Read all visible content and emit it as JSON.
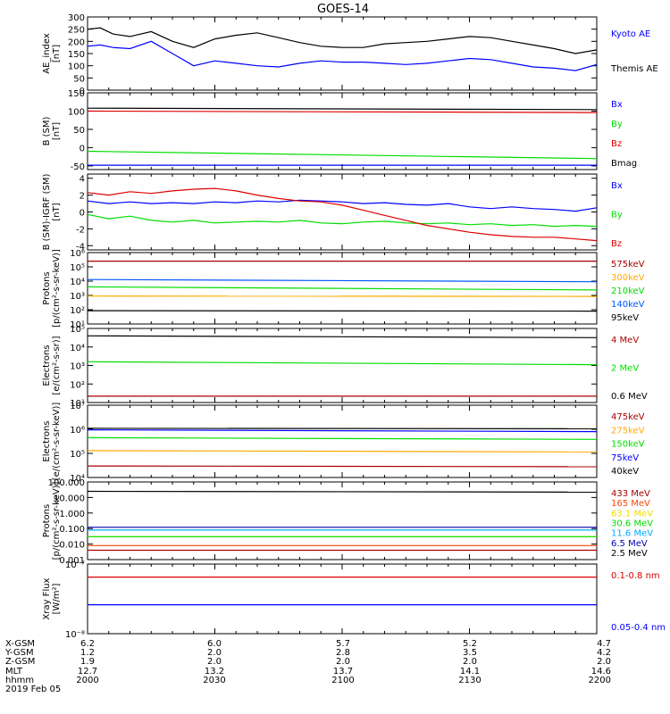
{
  "title": "GOES-14",
  "footer": {
    "row_labels": [
      "X-GSM",
      "Y-GSM",
      "Z-GSM",
      "MLT",
      "hhmm",
      "2019 Feb 05"
    ],
    "columns": [
      [
        "6.2",
        "1.2",
        "1.9",
        "12.7",
        "2000"
      ],
      [
        "6.0",
        "2.0",
        "2.0",
        "13.2",
        "2030"
      ],
      [
        "5.7",
        "2.8",
        "2.0",
        "13.7",
        "2100"
      ],
      [
        "5.2",
        "3.5",
        "2.0",
        "14.1",
        "2130"
      ],
      [
        "4.7",
        "4.2",
        "2.0",
        "14.6",
        "2200"
      ]
    ]
  },
  "chart_data": [
    {
      "type": "line",
      "ylabel": [
        "AE_index",
        "[nT]"
      ],
      "ylim": [
        0,
        300
      ],
      "yticks": [
        0,
        50,
        100,
        150,
        200,
        250,
        300
      ],
      "ytick_labels": [
        "0",
        "50",
        "100",
        "150",
        "200",
        "250",
        "300"
      ],
      "x": [
        0,
        3,
        6,
        10,
        15,
        20,
        25,
        30,
        35,
        40,
        45,
        50,
        55,
        60,
        65,
        70,
        75,
        80,
        85,
        90,
        95,
        100,
        105,
        110,
        115,
        120
      ],
      "series": [
        {
          "name": "Kyoto AE",
          "color": "#0000ff",
          "values": [
            180,
            185,
            175,
            170,
            200,
            150,
            100,
            120,
            110,
            100,
            95,
            110,
            120,
            115,
            115,
            110,
            105,
            110,
            120,
            130,
            125,
            110,
            95,
            90,
            80,
            105
          ]
        },
        {
          "name": "Themis AE",
          "color": "#000000",
          "values": [
            250,
            255,
            230,
            220,
            240,
            200,
            175,
            210,
            225,
            235,
            215,
            195,
            180,
            175,
            175,
            190,
            195,
            200,
            210,
            220,
            215,
            200,
            185,
            170,
            150,
            165
          ]
        }
      ]
    },
    {
      "type": "line",
      "ylabel": [
        "B (SM)",
        "[nT]"
      ],
      "ylim": [
        -60,
        150
      ],
      "yticks": [
        -50,
        0,
        50,
        100,
        150
      ],
      "ytick_labels": [
        "-50",
        "0",
        "50",
        "100",
        "150"
      ],
      "x": [
        0,
        120
      ],
      "series": [
        {
          "name": "Bx",
          "color": "#0000ff",
          "values": [
            -48,
            -48
          ]
        },
        {
          "name": "By",
          "color": "#00dd00",
          "values": [
            -10,
            -30
          ]
        },
        {
          "name": "Bz",
          "color": "#dd0000",
          "values": [
            100,
            96
          ]
        },
        {
          "name": "Bmag",
          "color": "#000000",
          "values": [
            108,
            104
          ]
        }
      ]
    },
    {
      "type": "line",
      "ylabel": [
        "B (SM)-IGRF (SM)",
        "[nT]"
      ],
      "ylim": [
        -4.5,
        4.5
      ],
      "yticks": [
        -4,
        -2,
        0,
        2,
        4
      ],
      "ytick_labels": [
        "-4",
        "-2",
        "0",
        "2",
        "4"
      ],
      "x": [
        0,
        5,
        10,
        15,
        20,
        25,
        30,
        35,
        40,
        45,
        50,
        55,
        60,
        65,
        70,
        75,
        80,
        85,
        90,
        95,
        100,
        105,
        110,
        115,
        120
      ],
      "series": [
        {
          "name": "Bx",
          "color": "#0000ff",
          "values": [
            1.3,
            1.0,
            1.2,
            1.0,
            1.1,
            1.0,
            1.2,
            1.1,
            1.3,
            1.2,
            1.4,
            1.3,
            1.2,
            1.0,
            1.1,
            0.9,
            0.8,
            1.0,
            0.6,
            0.4,
            0.6,
            0.4,
            0.3,
            0.1,
            0.5
          ]
        },
        {
          "name": "By",
          "color": "#00dd00",
          "values": [
            -0.3,
            -0.8,
            -0.5,
            -1.0,
            -1.2,
            -1.0,
            -1.3,
            -1.2,
            -1.1,
            -1.2,
            -1.0,
            -1.3,
            -1.4,
            -1.2,
            -1.1,
            -1.3,
            -1.4,
            -1.3,
            -1.5,
            -1.4,
            -1.6,
            -1.5,
            -1.7,
            -1.6,
            -1.7
          ]
        },
        {
          "name": "Bz",
          "color": "#dd0000",
          "values": [
            2.3,
            2.0,
            2.4,
            2.2,
            2.5,
            2.7,
            2.8,
            2.5,
            2.0,
            1.6,
            1.3,
            1.2,
            0.8,
            0.2,
            -0.4,
            -1.0,
            -1.6,
            -2.0,
            -2.4,
            -2.7,
            -2.9,
            -3.0,
            -3.0,
            -3.2,
            -3.4
          ]
        }
      ]
    },
    {
      "type": "line",
      "scale": "log",
      "ylabel": [
        "Protons",
        "[p/(cm²-s-sr-keV)]"
      ],
      "ylim": [
        10,
        1000000
      ],
      "yticks": [
        10,
        100,
        1000,
        10000,
        100000,
        1000000
      ],
      "ytick_labels": [
        "10¹",
        "10²",
        "10³",
        "10⁴",
        "10⁵",
        "10⁶"
      ],
      "x": [
        0,
        120
      ],
      "series": [
        {
          "name": "575keV",
          "color": "#aa0000",
          "values": [
            250000,
            250000
          ]
        },
        {
          "name": "300keV",
          "color": "#ffaa00",
          "values": [
            900,
            850
          ]
        },
        {
          "name": "210keV",
          "color": "#00dd00",
          "values": [
            4000,
            2400
          ]
        },
        {
          "name": "140keV",
          "color": "#0055ff",
          "values": [
            13000,
            9000
          ]
        },
        {
          "name": "95keV",
          "color": "#000000",
          "values": [
            85,
            80
          ]
        }
      ]
    },
    {
      "type": "line",
      "scale": "log",
      "ylabel": [
        "Electrons",
        "[e/(cm²-s-sr)]"
      ],
      "ylim": [
        10,
        100000
      ],
      "yticks": [
        10,
        100,
        1000,
        10000,
        100000
      ],
      "ytick_labels": [
        "10¹",
        "10²",
        "10³",
        "10⁴",
        "10⁵"
      ],
      "x": [
        0,
        120
      ],
      "series": [
        {
          "name": "4 MeV",
          "color": "#aa0000",
          "values": [
            22,
            22
          ]
        },
        {
          "name": "2 MeV",
          "color": "#00dd00",
          "values": [
            1600,
            1100
          ]
        },
        {
          "name": "0.6 MeV",
          "color": "#000000",
          "values": [
            40000,
            32000
          ]
        }
      ]
    },
    {
      "type": "line",
      "scale": "log",
      "ylabel": [
        "Electrons",
        "[e/(cm²-s-sr-keV)]"
      ],
      "ylim": [
        10000,
        10000000
      ],
      "yticks": [
        10000,
        100000,
        1000000,
        10000000
      ],
      "ytick_labels": [
        "10⁴",
        "10⁵",
        "10⁶",
        "10⁷"
      ],
      "x": [
        0,
        120
      ],
      "series": [
        {
          "name": "475keV",
          "color": "#aa0000",
          "values": [
            30000,
            28000
          ]
        },
        {
          "name": "275keV",
          "color": "#ffaa00",
          "values": [
            130000,
            115000
          ]
        },
        {
          "name": "150keV",
          "color": "#00dd00",
          "values": [
            450000,
            380000
          ]
        },
        {
          "name": "75keV",
          "color": "#0000ff",
          "values": [
            950000,
            800000
          ]
        },
        {
          "name": "40keV",
          "color": "#000000",
          "values": [
            1100000,
            1050000
          ]
        }
      ]
    },
    {
      "type": "line",
      "scale": "log",
      "ylabel": [
        "Protons",
        "[p/(cm²-s-sr-keV)]"
      ],
      "ylim": [
        0.001,
        100
      ],
      "yticks": [
        0.001,
        0.01,
        0.1,
        1,
        10,
        100
      ],
      "ytick_labels": [
        "0.001",
        "0.010",
        "0.100",
        "1.000",
        "10.000",
        "100.000"
      ],
      "x": [
        0,
        120
      ],
      "series": [
        {
          "name": "433 MeV",
          "color": "#aa0000",
          "values": [
            0.004,
            0.004
          ]
        },
        {
          "name": "165 MeV",
          "color": "#ff4400",
          "values": [
            0.008,
            0.008
          ]
        },
        {
          "name": "63.1 MeV",
          "color": "#eedd00",
          "values": [
            0.03,
            0.03
          ]
        },
        {
          "name": "30.6 MeV",
          "color": "#00dd00",
          "values": [
            0.03,
            0.03
          ]
        },
        {
          "name": "11.6 MeV",
          "color": "#00aaff",
          "values": [
            0.08,
            0.08
          ]
        },
        {
          "name": "6.5 MeV",
          "color": "#0000aa",
          "values": [
            0.12,
            0.12
          ]
        },
        {
          "name": "2.5 MeV",
          "color": "#000000",
          "values": [
            25,
            22
          ]
        }
      ]
    },
    {
      "type": "line",
      "scale": "log",
      "ylabel": [
        "Xray Flux",
        "[W/m²]"
      ],
      "ylim": [
        1e-08,
        1e-07
      ],
      "yticks": [
        1e-08,
        1e-07
      ],
      "ytick_labels": [
        "10⁻⁸",
        "10⁻⁷"
      ],
      "x": [
        0,
        120
      ],
      "series": [
        {
          "name": "0.1-0.8 nm",
          "color": "#dd0000",
          "values": [
            6.5e-08,
            6.5e-08
          ]
        },
        {
          "name": "0.05-0.4 nm",
          "color": "#0000ff",
          "values": [
            2.6e-08,
            2.6e-08
          ]
        }
      ]
    }
  ]
}
